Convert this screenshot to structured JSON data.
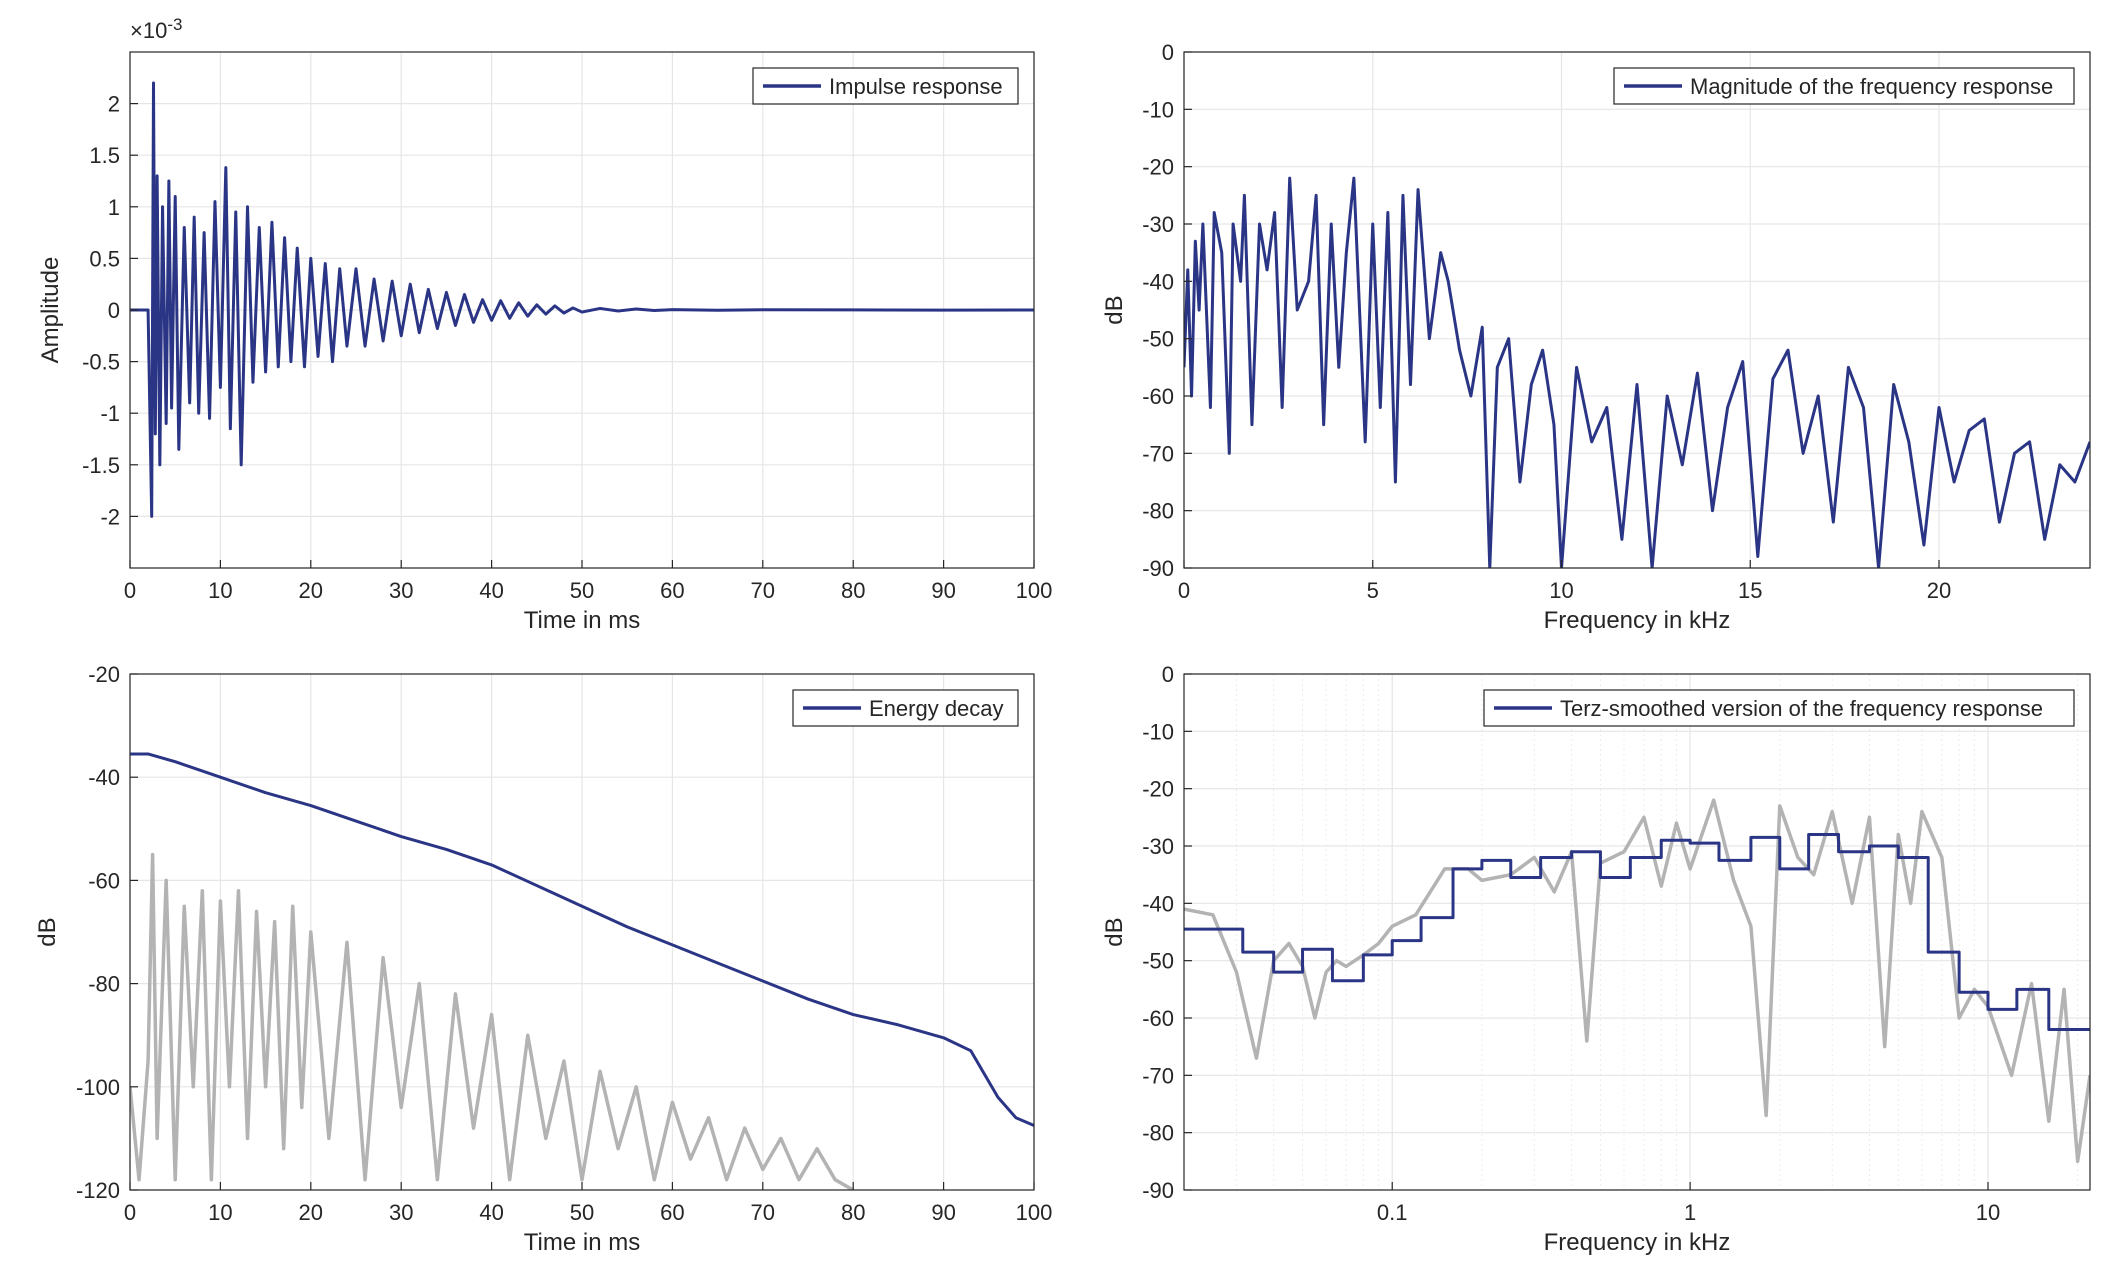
{
  "colors": {
    "series": "#2b3585",
    "gray": "#b3b3b3",
    "grid": "#e6e6e6",
    "axis": "#262626"
  },
  "chart_data": [
    {
      "id": "impulse",
      "type": "line",
      "xlabel": "Time in ms",
      "ylabel": "Amplitude",
      "exponent_label": "×10",
      "exponent_power": "-3",
      "xlim": [
        0,
        100
      ],
      "ylim": [
        -2.5,
        2.5
      ],
      "xticks": [
        0,
        10,
        20,
        30,
        40,
        50,
        60,
        70,
        80,
        90,
        100
      ],
      "yticks": [
        -2,
        -1.5,
        -1,
        -0.5,
        0,
        0.5,
        1,
        1.5,
        2
      ],
      "grid": true,
      "legend_position": "top-right",
      "series": [
        {
          "name": "Impulse response",
          "color": "#2b3585",
          "x": [
            0,
            2.0,
            2.4,
            2.6,
            2.8,
            3.0,
            3.3,
            3.6,
            4.0,
            4.3,
            4.6,
            5.0,
            5.4,
            6.0,
            6.6,
            7.1,
            7.6,
            8.2,
            8.8,
            9.4,
            10.0,
            10.6,
            11.1,
            11.7,
            12.3,
            13.0,
            13.6,
            14.3,
            15.0,
            15.7,
            16.4,
            17.1,
            17.8,
            18.5,
            19.3,
            20.0,
            20.8,
            21.6,
            22.4,
            23.2,
            24.0,
            25.0,
            26.0,
            27.0,
            28.0,
            29.0,
            30.0,
            31.0,
            32.0,
            33.0,
            34.0,
            35.0,
            36.0,
            37.0,
            38.0,
            39.0,
            40.0,
            41.0,
            42.0,
            43.0,
            44.0,
            45.0,
            46.0,
            47.0,
            48.0,
            49.0,
            50.0,
            52.0,
            54.0,
            56.0,
            58.0,
            60.0,
            65.0,
            70.0,
            80.0,
            90.0,
            100.0
          ],
          "y": [
            0,
            0,
            -2.0,
            2.2,
            -1.2,
            1.3,
            -1.5,
            1.0,
            -1.1,
            1.25,
            -0.95,
            1.1,
            -1.35,
            0.8,
            -0.9,
            0.9,
            -1.0,
            0.75,
            -1.05,
            1.05,
            -0.75,
            1.38,
            -1.15,
            0.95,
            -1.5,
            1.0,
            -0.7,
            0.8,
            -0.6,
            0.85,
            -0.55,
            0.7,
            -0.5,
            0.6,
            -0.55,
            0.5,
            -0.45,
            0.45,
            -0.5,
            0.4,
            -0.35,
            0.4,
            -0.35,
            0.3,
            -0.3,
            0.28,
            -0.25,
            0.25,
            -0.22,
            0.2,
            -0.18,
            0.17,
            -0.15,
            0.15,
            -0.12,
            0.1,
            -0.1,
            0.09,
            -0.08,
            0.07,
            -0.06,
            0.05,
            -0.04,
            0.04,
            -0.03,
            0.02,
            -0.02,
            0.015,
            -0.01,
            0.01,
            -0.005,
            0.004,
            -0.003,
            0.002,
            0.001,
            -0.001,
            0
          ]
        }
      ]
    },
    {
      "id": "magnitude",
      "type": "line",
      "xlabel": "Frequency in kHz",
      "ylabel": "dB",
      "xlim": [
        0,
        24
      ],
      "ylim": [
        -90,
        0
      ],
      "xticks": [
        0,
        5,
        10,
        15,
        20
      ],
      "yticks": [
        0,
        -10,
        -20,
        -30,
        -40,
        -50,
        -60,
        -70,
        -80,
        -90
      ],
      "grid": true,
      "legend_position": "top-right",
      "series": [
        {
          "name": "Magnitude of the frequency response",
          "color": "#2b3585",
          "x": [
            0,
            0.1,
            0.2,
            0.3,
            0.4,
            0.5,
            0.7,
            0.8,
            1.0,
            1.2,
            1.3,
            1.5,
            1.6,
            1.8,
            2.0,
            2.2,
            2.4,
            2.6,
            2.8,
            3.0,
            3.3,
            3.5,
            3.7,
            3.9,
            4.1,
            4.3,
            4.5,
            4.8,
            5.0,
            5.2,
            5.4,
            5.6,
            5.8,
            6.0,
            6.2,
            6.5,
            6.8,
            7.0,
            7.3,
            7.6,
            7.9,
            8.1,
            8.3,
            8.6,
            8.9,
            9.2,
            9.5,
            9.8,
            10.0,
            10.4,
            10.8,
            11.2,
            11.6,
            12.0,
            12.4,
            12.8,
            13.2,
            13.6,
            14.0,
            14.4,
            14.8,
            15.2,
            15.6,
            16.0,
            16.4,
            16.8,
            17.2,
            17.6,
            18.0,
            18.4,
            18.8,
            19.2,
            19.6,
            20.0,
            20.4,
            20.8,
            21.2,
            21.6,
            22.0,
            22.4,
            22.8,
            23.2,
            23.6,
            24.0
          ],
          "y": [
            -55,
            -38,
            -60,
            -33,
            -45,
            -30,
            -62,
            -28,
            -35,
            -70,
            -30,
            -40,
            -25,
            -65,
            -30,
            -38,
            -28,
            -62,
            -22,
            -45,
            -40,
            -25,
            -65,
            -30,
            -55,
            -35,
            -22,
            -68,
            -30,
            -62,
            -28,
            -75,
            -25,
            -58,
            -24,
            -50,
            -35,
            -40,
            -52,
            -60,
            -48,
            -90,
            -55,
            -50,
            -75,
            -58,
            -52,
            -65,
            -90,
            -55,
            -68,
            -62,
            -85,
            -58,
            -90,
            -60,
            -72,
            -56,
            -80,
            -62,
            -54,
            -88,
            -57,
            -52,
            -70,
            -60,
            -82,
            -55,
            -62,
            -90,
            -58,
            -68,
            -86,
            -62,
            -75,
            -66,
            -64,
            -82,
            -70,
            -68,
            -85,
            -72,
            -75,
            -68
          ]
        }
      ]
    },
    {
      "id": "energy",
      "type": "line",
      "xlabel": "Time in ms",
      "ylabel": "dB",
      "xlim": [
        0,
        100
      ],
      "ylim": [
        -120,
        -20
      ],
      "xticks": [
        0,
        10,
        20,
        30,
        40,
        50,
        60,
        70,
        80,
        90,
        100
      ],
      "yticks": [
        -20,
        -40,
        -60,
        -80,
        -100,
        -120
      ],
      "grid": true,
      "legend_position": "top-right",
      "series": [
        {
          "name": "Energy decay",
          "color": "#2b3585",
          "x": [
            0,
            2,
            5,
            10,
            15,
            20,
            25,
            30,
            35,
            40,
            45,
            50,
            55,
            60,
            65,
            70,
            75,
            80,
            85,
            90,
            93,
            96,
            98,
            100
          ],
          "y": [
            -35.5,
            -35.5,
            -37,
            -40,
            -43,
            -45.5,
            -48.5,
            -51.5,
            -54,
            -57,
            -61,
            -65,
            -69,
            -72.5,
            -76,
            -79.5,
            -83,
            -86,
            -88,
            -90.5,
            -93,
            -102,
            -106,
            -107.5
          ]
        },
        {
          "name": "",
          "color": "#b3b3b3",
          "x": [
            0,
            1,
            2,
            2.5,
            3,
            4,
            5,
            6,
            7,
            8,
            9,
            10,
            11,
            12,
            13,
            14,
            15,
            16,
            17,
            18,
            19,
            20,
            22,
            24,
            26,
            28,
            30,
            32,
            34,
            36,
            38,
            40,
            42,
            44,
            46,
            48,
            50,
            52,
            54,
            56,
            58,
            60,
            62,
            64,
            66,
            68,
            70,
            72,
            74,
            76,
            78,
            80
          ],
          "y": [
            -100,
            -118,
            -95,
            -55,
            -110,
            -60,
            -118,
            -65,
            -100,
            -62,
            -118,
            -64,
            -100,
            -62,
            -110,
            -66,
            -100,
            -68,
            -112,
            -65,
            -104,
            -70,
            -110,
            -72,
            -118,
            -75,
            -104,
            -80,
            -118,
            -82,
            -108,
            -86,
            -118,
            -90,
            -110,
            -95,
            -118,
            -97,
            -112,
            -100,
            -118,
            -103,
            -114,
            -106,
            -118,
            -108,
            -116,
            -110,
            -118,
            -112,
            -118,
            -120
          ]
        }
      ]
    },
    {
      "id": "terz",
      "type": "line",
      "xscale": "log",
      "xlabel": "Frequency in kHz",
      "ylabel": "dB",
      "xlim": [
        0.02,
        22
      ],
      "ylim": [
        -90,
        0
      ],
      "xticks": [
        0.1,
        1,
        10
      ],
      "xticklabels": [
        "0.1",
        "1",
        "10"
      ],
      "yticks": [
        0,
        -10,
        -20,
        -30,
        -40,
        -50,
        -60,
        -70,
        -80,
        -90
      ],
      "grid": true,
      "legend_position": "top-right",
      "series": [
        {
          "name": "Terz-smoothed version of the frequency response",
          "color": "#2b3585",
          "step": true,
          "x": [
            0.02,
            0.0315,
            0.04,
            0.05,
            0.063,
            0.08,
            0.1,
            0.125,
            0.16,
            0.2,
            0.25,
            0.315,
            0.4,
            0.5,
            0.63,
            0.8,
            1.0,
            1.25,
            1.6,
            2.0,
            2.5,
            3.15,
            4.0,
            5.0,
            6.3,
            8.0,
            10.0,
            12.5,
            16.0,
            22.0
          ],
          "y": [
            -44.5,
            -48.5,
            -52,
            -48,
            -53.5,
            -49,
            -46.5,
            -42.5,
            -34,
            -32.5,
            -35.5,
            -32,
            -31,
            -35.5,
            -32,
            -29,
            -29.5,
            -32.5,
            -28.5,
            -34,
            -28,
            -31,
            -30,
            -32,
            -48.5,
            -55.5,
            -58.5,
            -55,
            -62,
            -62
          ]
        },
        {
          "name": "",
          "color": "#b3b3b3",
          "x": [
            0.02,
            0.025,
            0.03,
            0.035,
            0.04,
            0.045,
            0.05,
            0.055,
            0.06,
            0.065,
            0.07,
            0.08,
            0.09,
            0.1,
            0.12,
            0.15,
            0.18,
            0.2,
            0.25,
            0.3,
            0.35,
            0.4,
            0.45,
            0.5,
            0.6,
            0.7,
            0.8,
            0.9,
            1.0,
            1.2,
            1.4,
            1.6,
            1.8,
            2.0,
            2.3,
            2.6,
            3.0,
            3.5,
            4.0,
            4.5,
            5.0,
            5.5,
            6.0,
            7.0,
            8.0,
            9.0,
            10.0,
            12.0,
            14.0,
            16.0,
            18.0,
            20.0,
            22.0
          ],
          "y": [
            -41,
            -42,
            -52,
            -67,
            -50,
            -47,
            -51,
            -60,
            -52,
            -50,
            -51,
            -49,
            -47,
            -44,
            -42,
            -34,
            -34,
            -36,
            -35,
            -32,
            -38,
            -31,
            -64,
            -33,
            -31,
            -25,
            -37,
            -26,
            -34,
            -22,
            -36,
            -44,
            -77,
            -23,
            -32,
            -35,
            -24,
            -40,
            -25,
            -65,
            -28,
            -40,
            -24,
            -32,
            -60,
            -55,
            -58,
            -70,
            -54,
            -78,
            -55,
            -85,
            -70
          ]
        }
      ]
    }
  ]
}
